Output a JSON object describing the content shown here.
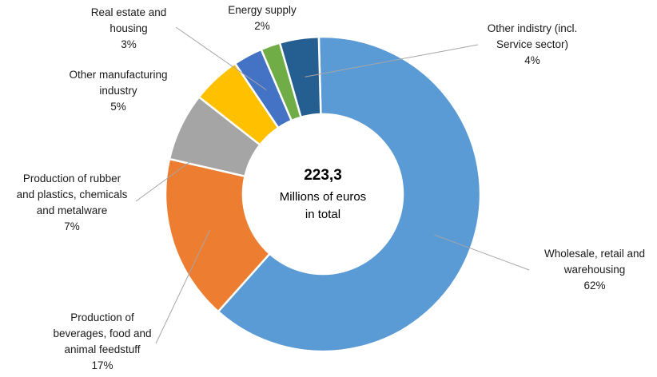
{
  "chart_data": {
    "type": "pie",
    "donut": true,
    "center": {
      "total": "223,3",
      "line1": "Millions of euros",
      "line2": "in total"
    },
    "unit": "%",
    "slices": [
      {
        "label_lines": [
          "Wholesale, retail and",
          "warehousing"
        ],
        "value": 62,
        "color": "#5B9BD5"
      },
      {
        "label_lines": [
          "Production of",
          "beverages, food and",
          "animal feedstuff"
        ],
        "value": 17,
        "color": "#ED7D31"
      },
      {
        "label_lines": [
          "Production of rubber",
          "and plastics, chemicals",
          "and metalware"
        ],
        "value": 7,
        "color": "#A5A5A5"
      },
      {
        "label_lines": [
          "Other manufacturing",
          "industry"
        ],
        "value": 5,
        "color": "#FFC000"
      },
      {
        "label_lines": [
          "Real estate and",
          "housing"
        ],
        "value": 3,
        "color": "#4472C4"
      },
      {
        "label_lines": [
          "Energy supply"
        ],
        "value": 2,
        "color": "#70AD47"
      },
      {
        "label_lines": [
          "Other indistry (incl.",
          "Service sector)"
        ],
        "value": 4,
        "color": "#255E91"
      }
    ]
  }
}
